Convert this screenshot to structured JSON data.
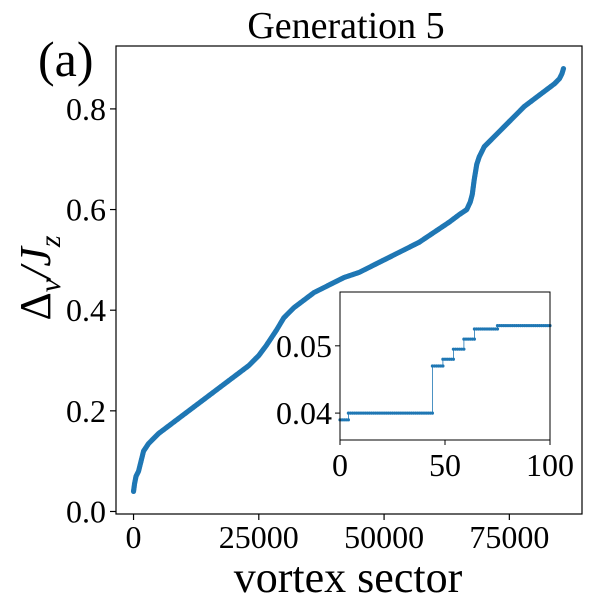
{
  "figure": {
    "panel_label": "(a)"
  },
  "chart_data": [
    {
      "type": "scatter",
      "title": "Generation 5",
      "xlabel": "vortex sector",
      "ylabel_main": "Δ",
      "ylabel_sub": "v",
      "ylabel_tail": "/J",
      "ylabel_sub2": "z",
      "xlim": [
        -3500,
        89500
      ],
      "ylim": [
        -0.005,
        0.925
      ],
      "xticks": [
        0,
        25000,
        50000,
        75000
      ],
      "xtick_labels": [
        "0",
        "25000",
        "50000",
        "75000"
      ],
      "yticks": [
        0.0,
        0.2,
        0.4,
        0.6,
        0.8
      ],
      "ytick_labels": [
        "0.0",
        "0.2",
        "0.4",
        "0.6",
        "0.8"
      ],
      "color": "#1f77b4",
      "grid": false,
      "series": [
        {
          "x": [
            0,
            200,
            500,
            1000,
            1500,
            2000,
            3000,
            4000,
            5000,
            7000,
            9000,
            11000,
            13000,
            15000,
            17000,
            19000,
            21000,
            23000,
            25000,
            26500,
            27500,
            28500,
            30000,
            32000,
            34000,
            36000,
            38000,
            40000,
            42000,
            45000,
            48000,
            51000,
            54000,
            57000,
            60000,
            63000,
            65000,
            66500,
            67200,
            67600,
            68000,
            68500,
            69000,
            69500,
            70000,
            71000,
            72000,
            73000,
            74000,
            76000,
            78000,
            80000,
            82000,
            84000,
            85000,
            85500,
            85800
          ],
          "y": [
            0.04,
            0.055,
            0.07,
            0.08,
            0.1,
            0.12,
            0.135,
            0.145,
            0.155,
            0.17,
            0.185,
            0.2,
            0.215,
            0.23,
            0.245,
            0.26,
            0.275,
            0.29,
            0.31,
            0.33,
            0.345,
            0.36,
            0.385,
            0.405,
            0.42,
            0.435,
            0.445,
            0.455,
            0.465,
            0.475,
            0.49,
            0.505,
            0.52,
            0.535,
            0.555,
            0.575,
            0.59,
            0.6,
            0.615,
            0.63,
            0.66,
            0.69,
            0.705,
            0.715,
            0.725,
            0.735,
            0.745,
            0.755,
            0.765,
            0.785,
            0.805,
            0.82,
            0.835,
            0.85,
            0.86,
            0.87,
            0.88
          ]
        }
      ]
    },
    {
      "type": "scatter",
      "title": "",
      "xlabel": "",
      "ylabel": "",
      "xlim": [
        0,
        100
      ],
      "ylim": [
        0.036,
        0.058
      ],
      "xticks": [
        0,
        50,
        100
      ],
      "xtick_labels": [
        "0",
        "50",
        "100"
      ],
      "yticks": [
        0.04,
        0.05
      ],
      "ytick_labels": [
        "0.04",
        "0.05"
      ],
      "color": "#1f77b4",
      "series": [
        {
          "x": [
            0,
            4,
            4,
            44,
            44,
            49,
            49,
            54,
            54,
            59,
            59,
            64,
            64,
            75,
            75,
            100
          ],
          "y": [
            0.039,
            0.039,
            0.04,
            0.04,
            0.047,
            0.047,
            0.048,
            0.048,
            0.0495,
            0.0495,
            0.051,
            0.051,
            0.0525,
            0.0525,
            0.053,
            0.053
          ]
        }
      ]
    }
  ]
}
